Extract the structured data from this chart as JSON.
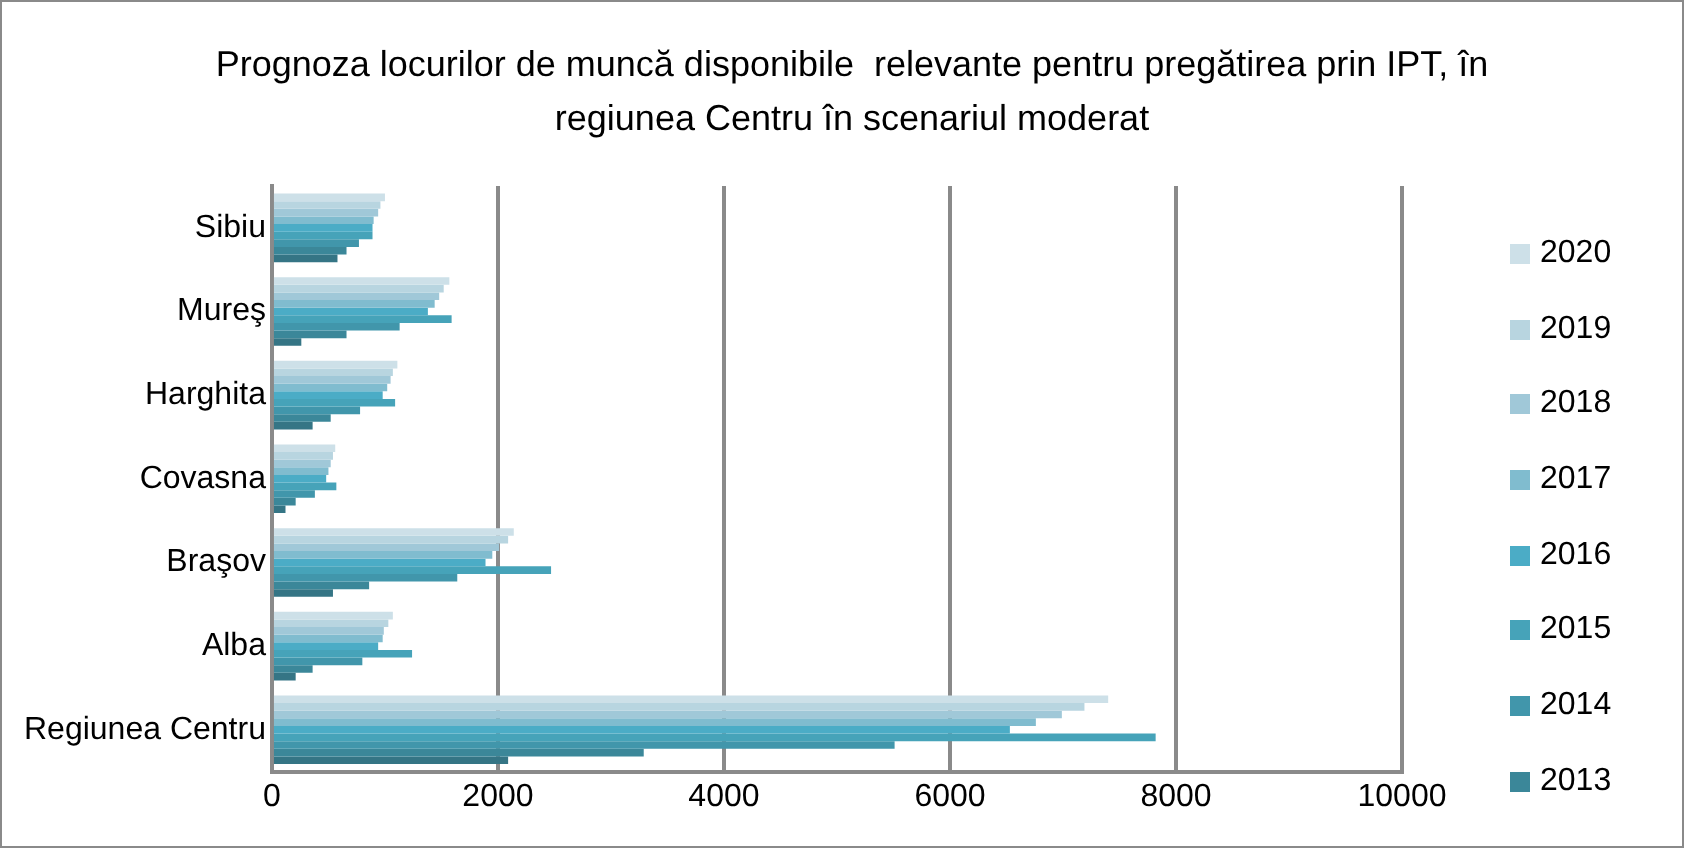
{
  "chart_data": {
    "type": "bar",
    "orientation": "horizontal",
    "title": "Prognoza locurilor de muncă disponibile  relevante pentru pregătirea prin IPT, în regiunea Centru în scenariul moderat",
    "categories": [
      "Sibiu",
      "Mureş",
      "Harghita",
      "Covasna",
      "Braşov",
      "Alba",
      "Regiunea Centru"
    ],
    "series": [
      {
        "name": "2020",
        "color": "#cde0e8",
        "values": [
          1000,
          1570,
          1110,
          560,
          2140,
          1070,
          7400
        ]
      },
      {
        "name": "2019",
        "color": "#b8d5e0",
        "values": [
          960,
          1520,
          1070,
          540,
          2090,
          1030,
          7190
        ]
      },
      {
        "name": "2018",
        "color": "#a0c8d8",
        "values": [
          940,
          1480,
          1050,
          520,
          2010,
          990,
          6990
        ]
      },
      {
        "name": "2017",
        "color": "#80bccf",
        "values": [
          900,
          1440,
          1020,
          500,
          1950,
          980,
          6760
        ]
      },
      {
        "name": "2016",
        "color": "#4bacc6",
        "values": [
          890,
          1380,
          980,
          480,
          1890,
          940,
          6530
        ]
      },
      {
        "name": "2015",
        "color": "#46a3b9",
        "values": [
          890,
          1590,
          1090,
          570,
          2470,
          1240,
          7820
        ]
      },
      {
        "name": "2014",
        "color": "#4196ab",
        "values": [
          770,
          1130,
          780,
          380,
          1640,
          800,
          5510
        ]
      },
      {
        "name": "2013",
        "color": "#3b8799",
        "values": [
          660,
          660,
          520,
          210,
          860,
          360,
          3290
        ]
      },
      {
        "color": "#357585",
        "values": [
          580,
          260,
          360,
          120,
          540,
          210,
          2090
        ]
      }
    ],
    "xlim": [
      0,
      10000
    ],
    "xticks": [
      0,
      2000,
      4000,
      6000,
      8000,
      10000
    ],
    "grid": "x",
    "legend": "right"
  }
}
